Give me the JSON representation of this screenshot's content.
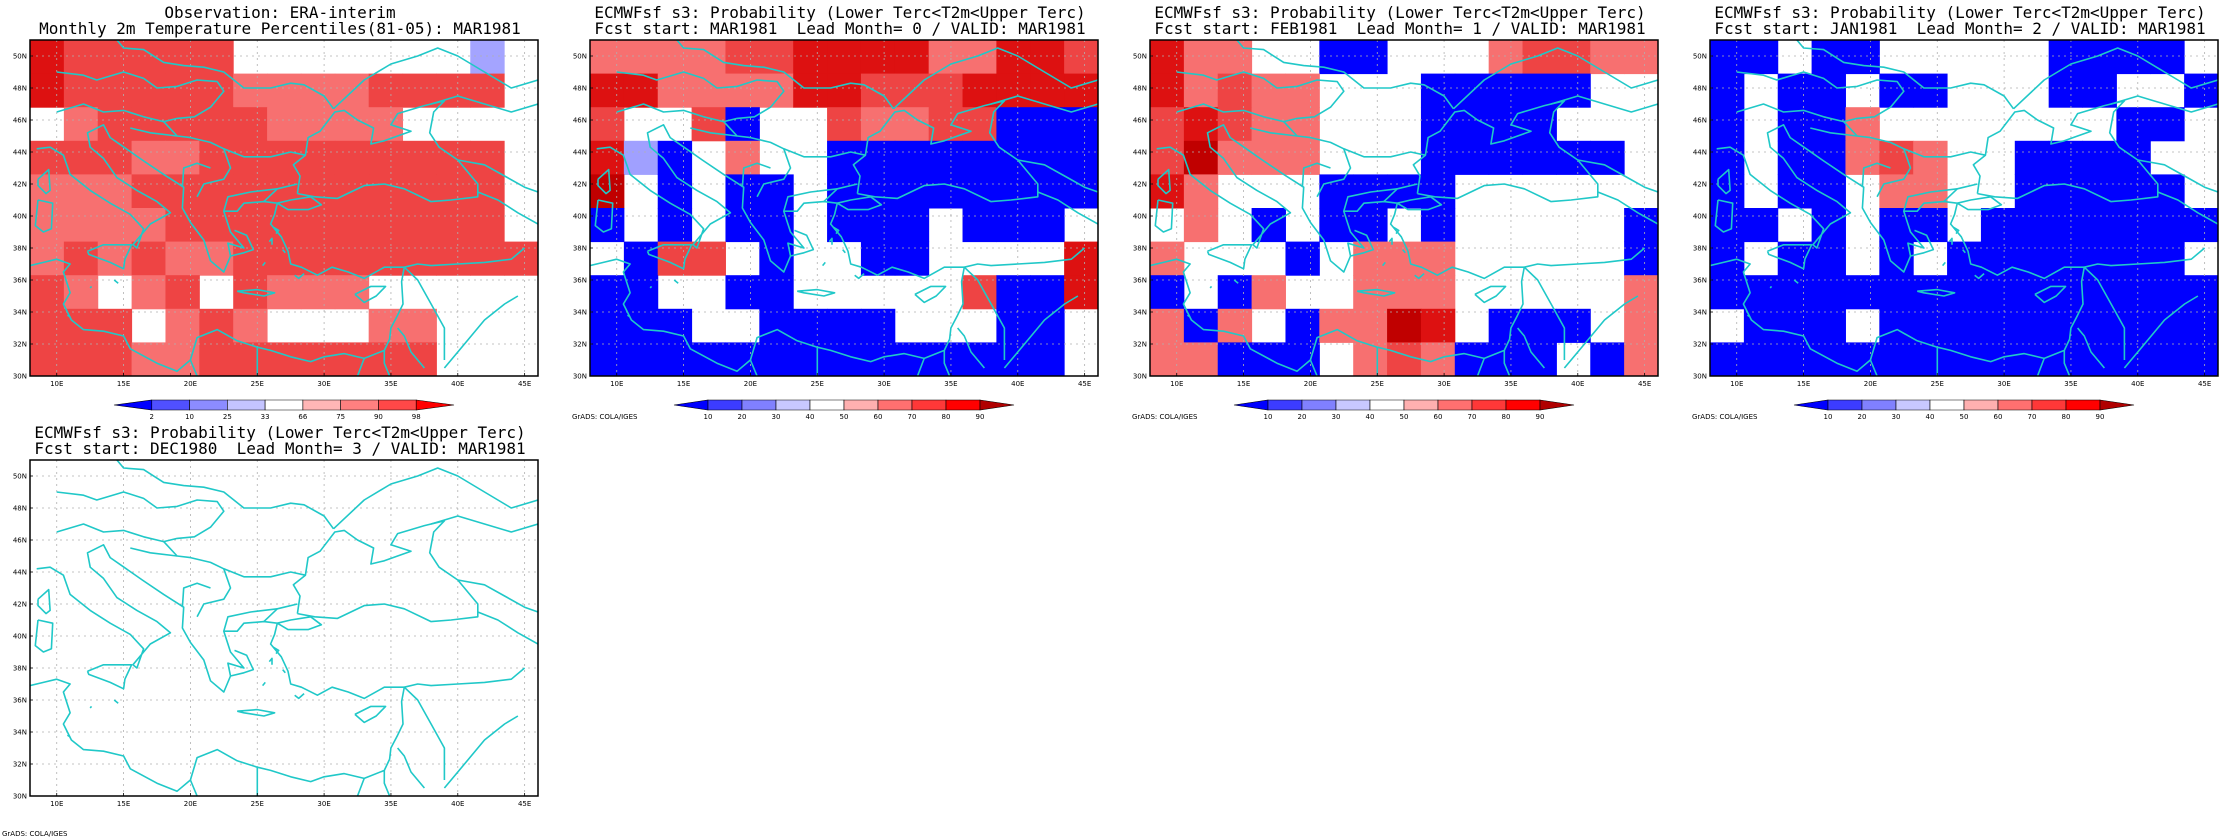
{
  "panels": [
    {
      "title1": "Observation: ERA-interim",
      "title2": "Monthly 2m Temperature Percentiles(81-05): MAR1981",
      "colorbar": {
        "labels": [
          "2",
          "10",
          "25",
          "33",
          "66",
          "75",
          "90",
          "98"
        ],
        "colors": [
          "#0000ff",
          "#5050ff",
          "#8c8cff",
          "#c4c4ff",
          "#ffffff",
          "#ffb6b6",
          "#ff8080",
          "#ff4848",
          "#ff0000"
        ]
      },
      "credit": ""
    },
    {
      "title1": "ECMWFsf s3: Probability (Lower Terc<T2m<Upper Terc)",
      "title2": "Fcst start: MAR1981  Lead Month= 0 / VALID: MAR1981",
      "colorbar": {
        "labels": [
          "10",
          "20",
          "30",
          "40",
          "50",
          "60",
          "70",
          "80",
          "90"
        ],
        "colors": [
          "#0000ff",
          "#3c3cff",
          "#8080ff",
          "#c8c8ff",
          "#ffffff",
          "#ffb0b0",
          "#ff7070",
          "#ff3838",
          "#ff0000",
          "#b00000"
        ]
      },
      "credit": "GrADS: COLA/IGES"
    },
    {
      "title1": "ECMWFsf s3: Probability (Lower Terc<T2m<Upper Terc)",
      "title2": "Fcst start: FEB1981  Lead Month= 1 / VALID: MAR1981",
      "colorbar": {
        "labels": [
          "10",
          "20",
          "30",
          "40",
          "50",
          "60",
          "70",
          "80",
          "90"
        ],
        "colors": [
          "#0000ff",
          "#3c3cff",
          "#8080ff",
          "#c8c8ff",
          "#ffffff",
          "#ffb0b0",
          "#ff7070",
          "#ff3838",
          "#ff0000",
          "#b00000"
        ]
      },
      "credit": "GrADS: COLA/IGES"
    },
    {
      "title1": "ECMWFsf s3: Probability (Lower Terc<T2m<Upper Terc)",
      "title2": "Fcst start: JAN1981  Lead Month= 2 / VALID: MAR1981",
      "colorbar": {
        "labels": [
          "10",
          "20",
          "30",
          "40",
          "50",
          "60",
          "70",
          "80",
          "90"
        ],
        "colors": [
          "#0000ff",
          "#3c3cff",
          "#8080ff",
          "#c8c8ff",
          "#ffffff",
          "#ffb0b0",
          "#ff7070",
          "#ff3838",
          "#ff0000",
          "#b00000"
        ]
      },
      "credit": "GrADS: COLA/IGES"
    },
    {
      "title1": "ECMWFsf s3: Probability (Lower Terc<T2m<Upper Terc)",
      "title2": "Fcst start: DEC1980  Lead Month= 3 / VALID: MAR1981",
      "colorbar": null,
      "credit": "GrADS: COLA/IGES"
    }
  ],
  "map": {
    "lon_range": [
      8,
      46
    ],
    "lat_range": [
      30,
      51
    ],
    "x_ticks": [
      "10E",
      "15E",
      "20E",
      "25E",
      "30E",
      "35E",
      "40E",
      "45E"
    ],
    "x_tick_values": [
      10,
      15,
      20,
      25,
      30,
      35,
      40,
      45
    ],
    "y_ticks": [
      "30N",
      "32N",
      "34N",
      "36N",
      "38N",
      "40N",
      "42N",
      "44N",
      "46N",
      "48N",
      "50N"
    ],
    "y_tick_values": [
      30,
      32,
      34,
      36,
      38,
      40,
      42,
      44,
      46,
      48,
      50
    ],
    "coast_color": "#20c8c8",
    "grid": true
  },
  "grid_cells": {
    "cols": 15,
    "rows": 10,
    "palette": [
      "#0000ff",
      "#4646ff",
      "#a0a0ff",
      "#ffffff",
      "#ffaaaa",
      "#f77070",
      "#ee4444",
      "#dd1111",
      "#c00000"
    ],
    "panels": [
      [
        "7666663333333a3",
        "766666555566663",
        "356666655553333",
        "666556666666663",
        "555666666666663",
        "555566666666663",
        "565655666666666",
        "653563655533333",
        "666356533355333",
        "666556666666333"
      ],
      [
        "555566777755776",
        "775555776667777",
        "633603365566000",
        "720353300000000",
        "830300300000000",
        "030300300030003",
        "306630330033337",
        "003300333336007",
        "000330000333003",
        "000000000000003"
      ],
      [
        "755330033356655",
        "756553330000033",
        "676553330000333",
        "685553330000003",
        "753330000333333",
        "353030030333330",
        "533303555333330",
        "030533555333335",
        "505305587300035",
        "550003565000305"
      ],
      [
        "003003333300003",
        "030030033300330",
        "030053333333003",
        "030056533000033",
        "030035533000003",
        "003030030000000",
        "030030300000003",
        "000000000000000",
        "300030000000000",
        "000000000000000"
      ],
      [
        "333333333333333",
        "333333333333333",
        "333333333333333",
        "333333333333333",
        "333333333333333",
        "333333333333333",
        "333333333333333",
        "333333333333333",
        "333333333333333",
        "333333333333333"
      ]
    ]
  }
}
